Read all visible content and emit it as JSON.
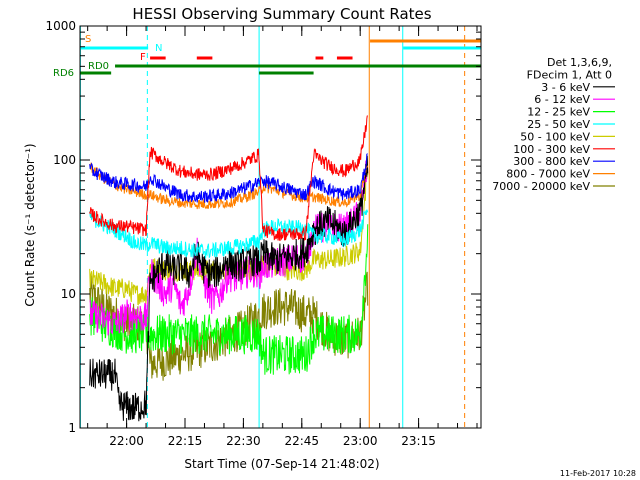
{
  "chart_data": {
    "type": "line",
    "title": "HESSI Observing Summary Count Rates",
    "xlabel": "Start Time (07-Sep-14 21:48:02)",
    "ylabel": "Count Rate (s⁻¹ detector⁻¹)",
    "footer": "11-Feb-2017 10:28",
    "x_unit": "minutes since 21:48:02",
    "xlim": [
      0,
      103
    ],
    "ylim": [
      1,
      1000
    ],
    "y_scale": "log",
    "x_ticks": [
      {
        "value": 11.97,
        "label": "22:00"
      },
      {
        "value": 26.97,
        "label": "22:15"
      },
      {
        "value": 41.97,
        "label": "22:30"
      },
      {
        "value": 56.97,
        "label": "22:45"
      },
      {
        "value": 71.97,
        "label": "23:00"
      },
      {
        "value": 86.97,
        "label": "23:15"
      }
    ],
    "y_ticks": [
      {
        "value": 1,
        "label": "1"
      },
      {
        "value": 10,
        "label": "10"
      },
      {
        "value": 100,
        "label": "100"
      },
      {
        "value": 1000,
        "label": "1000"
      }
    ],
    "legend": {
      "placement": "right",
      "header": [
        "Det 1,3,6,9,",
        "FDecim 1, Att 0"
      ],
      "entries": [
        {
          "label": "3 - 6 keV",
          "color": "#000000"
        },
        {
          "label": "6 - 12 keV",
          "color": "#ff00ff"
        },
        {
          "label": "12 - 25 keV",
          "color": "#00ff00"
        },
        {
          "label": "25 - 50 keV",
          "color": "#00ffff"
        },
        {
          "label": "50 - 100 keV",
          "color": "#cccc00"
        },
        {
          "label": "100 - 300 keV",
          "color": "#ff0000"
        },
        {
          "label": "300 - 800 keV",
          "color": "#0000ff"
        },
        {
          "label": "800 - 7000 keV",
          "color": "#ff8000"
        },
        {
          "label": "7000 - 20000 keV",
          "color": "#808000"
        }
      ]
    },
    "flags": [
      {
        "label": "S",
        "color": "#ff8000",
        "segments": [
          [
            74.5,
            103
          ]
        ]
      },
      {
        "label": "N",
        "color": "#00ffff",
        "segments": [
          [
            0,
            17.5
          ],
          [
            83,
            103
          ]
        ]
      },
      {
        "label": "F",
        "color": "#ff0000",
        "segments": [
          [
            18,
            22
          ],
          [
            30,
            34
          ],
          [
            60.5,
            62.5
          ],
          [
            66,
            70
          ]
        ]
      },
      {
        "label": "RD0",
        "color": "#008000",
        "segments": [
          [
            9,
            103
          ]
        ]
      },
      {
        "label": "RD6",
        "color": "#008000",
        "segments": [
          [
            0,
            8
          ],
          [
            46,
            60
          ]
        ]
      }
    ],
    "vertical_markers": [
      {
        "x": 0.1,
        "color": "#00ffff",
        "style": "solid"
      },
      {
        "x": 17.3,
        "color": "#00ffff",
        "style": "dashed"
      },
      {
        "x": 46.0,
        "color": "#00ffff",
        "style": "solid"
      },
      {
        "x": 74.3,
        "color": "#ff8000",
        "style": "solid"
      },
      {
        "x": 82.9,
        "color": "#00ffff",
        "style": "solid"
      },
      {
        "x": 98.8,
        "color": "#ff8000",
        "style": "dashed"
      }
    ],
    "series": [
      {
        "name": "3 - 6 keV",
        "color": "#000000",
        "noise": 0.12,
        "points": [
          [
            2.5,
            2.5
          ],
          [
            6,
            2.5
          ],
          [
            9,
            2.5
          ],
          [
            10,
            1.5
          ],
          [
            14,
            1.4
          ],
          [
            17,
            1.5
          ],
          [
            18,
            12
          ],
          [
            20,
            15
          ],
          [
            22,
            17
          ],
          [
            24,
            15
          ],
          [
            26,
            16
          ],
          [
            28,
            14
          ],
          [
            30,
            20
          ],
          [
            32,
            15
          ],
          [
            34,
            14
          ],
          [
            36,
            15
          ],
          [
            38,
            18
          ],
          [
            40,
            16
          ],
          [
            42,
            17
          ],
          [
            44,
            18
          ],
          [
            46,
            17
          ],
          [
            47,
            20
          ],
          [
            50,
            18
          ],
          [
            54,
            19
          ],
          [
            58,
            21
          ],
          [
            60,
            30
          ],
          [
            64,
            35
          ],
          [
            68,
            28
          ],
          [
            72,
            42
          ],
          [
            74,
            90
          ]
        ]
      },
      {
        "name": "6 - 12 keV",
        "color": "#ff00ff",
        "noise": 0.12,
        "points": [
          [
            2.5,
            7
          ],
          [
            6,
            6.5
          ],
          [
            9,
            6
          ],
          [
            12,
            7
          ],
          [
            14,
            7
          ],
          [
            17,
            6.5
          ],
          [
            18,
            15
          ],
          [
            20,
            12
          ],
          [
            22,
            10
          ],
          [
            24,
            12
          ],
          [
            26,
            8
          ],
          [
            28,
            11
          ],
          [
            30,
            22
          ],
          [
            32,
            12
          ],
          [
            34,
            9
          ],
          [
            36,
            10
          ],
          [
            38,
            14
          ],
          [
            40,
            13
          ],
          [
            42,
            14
          ],
          [
            44,
            15
          ],
          [
            46,
            14
          ],
          [
            47,
            16
          ],
          [
            50,
            17
          ],
          [
            54,
            18
          ],
          [
            58,
            19
          ],
          [
            60,
            30
          ],
          [
            64,
            32
          ],
          [
            68,
            30
          ],
          [
            72,
            40
          ],
          [
            74,
            100
          ]
        ]
      },
      {
        "name": "12 - 25 keV",
        "color": "#00ff00",
        "noise": 0.15,
        "points": [
          [
            2.5,
            7
          ],
          [
            6,
            6
          ],
          [
            9,
            5.5
          ],
          [
            12,
            5
          ],
          [
            14,
            5
          ],
          [
            17,
            5
          ],
          [
            18,
            5
          ],
          [
            22,
            5
          ],
          [
            26,
            5
          ],
          [
            30,
            5
          ],
          [
            34,
            5
          ],
          [
            38,
            5
          ],
          [
            42,
            5
          ],
          [
            46,
            5
          ],
          [
            47,
            3.5
          ],
          [
            50,
            3.5
          ],
          [
            54,
            3.5
          ],
          [
            58,
            3.5
          ],
          [
            60,
            5
          ],
          [
            64,
            5
          ],
          [
            68,
            5
          ],
          [
            72,
            5
          ],
          [
            74,
            30
          ]
        ]
      },
      {
        "name": "25 - 50 keV",
        "color": "#00ffff",
        "noise": 0.06,
        "points": [
          [
            2.5,
            38
          ],
          [
            6,
            33
          ],
          [
            9,
            30
          ],
          [
            12,
            27
          ],
          [
            14,
            24
          ],
          [
            17,
            23
          ],
          [
            18,
            24
          ],
          [
            22,
            22
          ],
          [
            26,
            22
          ],
          [
            30,
            21
          ],
          [
            34,
            21
          ],
          [
            38,
            22
          ],
          [
            42,
            23
          ],
          [
            46,
            25
          ],
          [
            47,
            30
          ],
          [
            50,
            32
          ],
          [
            54,
            31
          ],
          [
            58,
            31
          ],
          [
            60,
            27
          ],
          [
            64,
            27
          ],
          [
            68,
            25
          ],
          [
            72,
            30
          ],
          [
            74,
            45
          ]
        ]
      },
      {
        "name": "50 - 100 keV",
        "color": "#cccc00",
        "noise": 0.08,
        "points": [
          [
            2.5,
            13
          ],
          [
            6,
            12
          ],
          [
            9,
            11
          ],
          [
            12,
            11
          ],
          [
            14,
            10
          ],
          [
            17,
            10
          ],
          [
            18,
            16
          ],
          [
            22,
            15
          ],
          [
            26,
            15
          ],
          [
            30,
            15
          ],
          [
            34,
            15
          ],
          [
            38,
            15
          ],
          [
            42,
            15
          ],
          [
            46,
            15
          ],
          [
            47,
            17
          ],
          [
            50,
            16
          ],
          [
            54,
            15
          ],
          [
            58,
            15
          ],
          [
            60,
            18
          ],
          [
            64,
            18
          ],
          [
            68,
            19
          ],
          [
            72,
            21
          ],
          [
            74,
            100
          ]
        ]
      },
      {
        "name": "100 - 300 keV",
        "color": "#ff0000",
        "noise": 0.05,
        "points": [
          [
            2.5,
            40
          ],
          [
            6,
            35
          ],
          [
            9,
            32
          ],
          [
            12,
            32
          ],
          [
            14,
            31
          ],
          [
            17,
            30
          ],
          [
            18,
            115
          ],
          [
            22,
            95
          ],
          [
            26,
            82
          ],
          [
            30,
            78
          ],
          [
            34,
            78
          ],
          [
            38,
            85
          ],
          [
            42,
            95
          ],
          [
            46,
            110
          ],
          [
            47,
            30
          ],
          [
            50,
            28
          ],
          [
            54,
            28
          ],
          [
            58,
            28
          ],
          [
            60,
            110
          ],
          [
            64,
            90
          ],
          [
            68,
            82
          ],
          [
            72,
            100
          ],
          [
            74,
            220
          ]
        ]
      },
      {
        "name": "300 - 800 keV",
        "color": "#0000ff",
        "noise": 0.05,
        "points": [
          [
            2.5,
            85
          ],
          [
            6,
            75
          ],
          [
            9,
            68
          ],
          [
            12,
            66
          ],
          [
            14,
            65
          ],
          [
            17,
            63
          ],
          [
            18,
            75
          ],
          [
            22,
            62
          ],
          [
            26,
            55
          ],
          [
            30,
            53
          ],
          [
            34,
            54
          ],
          [
            38,
            56
          ],
          [
            42,
            61
          ],
          [
            46,
            68
          ],
          [
            47,
            70
          ],
          [
            50,
            66
          ],
          [
            54,
            60
          ],
          [
            58,
            55
          ],
          [
            60,
            70
          ],
          [
            64,
            60
          ],
          [
            68,
            55
          ],
          [
            72,
            60
          ],
          [
            74,
            110
          ]
        ]
      },
      {
        "name": "800 - 7000 keV",
        "color": "#ff8000",
        "noise": 0.04,
        "points": [
          [
            2.5,
            90
          ],
          [
            6,
            73
          ],
          [
            9,
            65
          ],
          [
            12,
            60
          ],
          [
            14,
            58
          ],
          [
            17,
            55
          ],
          [
            18,
            55
          ],
          [
            22,
            50
          ],
          [
            26,
            48
          ],
          [
            30,
            47
          ],
          [
            34,
            47
          ],
          [
            38,
            48
          ],
          [
            42,
            52
          ],
          [
            46,
            58
          ],
          [
            47,
            63
          ],
          [
            50,
            60
          ],
          [
            54,
            55
          ],
          [
            58,
            52
          ],
          [
            60,
            53
          ],
          [
            64,
            50
          ],
          [
            68,
            48
          ],
          [
            72,
            55
          ],
          [
            74,
            100
          ]
        ]
      },
      {
        "name": "7000 - 20000 keV",
        "color": "#808000",
        "noise": 0.15,
        "points": [
          [
            2.5,
            10
          ],
          [
            6,
            8
          ],
          [
            9,
            7
          ],
          [
            12,
            6
          ],
          [
            14,
            6
          ],
          [
            17,
            6
          ],
          [
            18,
            3
          ],
          [
            22,
            3.2
          ],
          [
            26,
            3.5
          ],
          [
            30,
            3.8
          ],
          [
            34,
            4.2
          ],
          [
            38,
            4.8
          ],
          [
            42,
            5.5
          ],
          [
            46,
            7
          ],
          [
            47,
            7.5
          ],
          [
            50,
            8
          ],
          [
            54,
            8
          ],
          [
            58,
            7
          ],
          [
            60,
            7
          ],
          [
            64,
            5
          ],
          [
            68,
            4.5
          ],
          [
            72,
            5
          ],
          [
            74,
            12
          ]
        ]
      }
    ]
  }
}
